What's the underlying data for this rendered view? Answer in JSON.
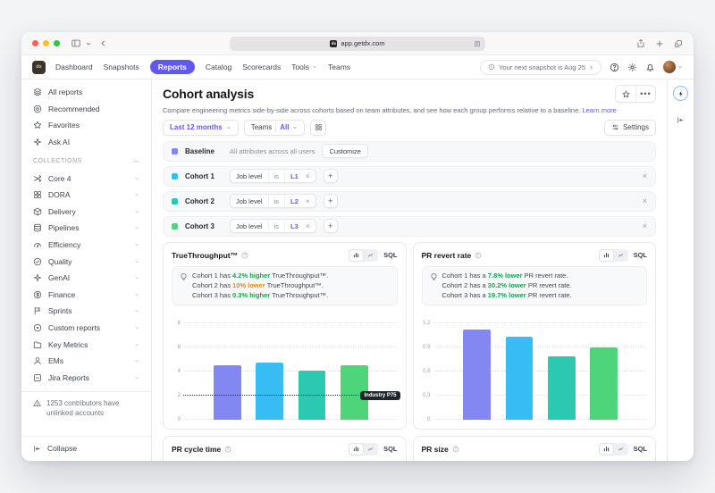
{
  "browser": {
    "url": "app.getdx.com",
    "favicon_text": "dx",
    "chrome_icons": [
      "sidebar-toggle-icon",
      "back-icon",
      "reader-icon",
      "share-icon",
      "new-tab-icon",
      "tabs-icon"
    ]
  },
  "nav": {
    "logo_text": "dx",
    "items": [
      {
        "label": "Dashboard",
        "active": false,
        "dropdown": false
      },
      {
        "label": "Snapshots",
        "active": false,
        "dropdown": false
      },
      {
        "label": "Reports",
        "active": true,
        "dropdown": false
      },
      {
        "label": "Catalog",
        "active": false,
        "dropdown": false
      },
      {
        "label": "Scorecards",
        "active": false,
        "dropdown": false
      },
      {
        "label": "Tools",
        "active": false,
        "dropdown": true
      },
      {
        "label": "Teams",
        "active": false,
        "dropdown": false
      }
    ],
    "snapshot_pill": "Your next snapshot is Aug 25",
    "right_icons": [
      "clock-icon",
      "help-icon",
      "gear-icon",
      "bell-icon",
      "avatar"
    ]
  },
  "sidebar": {
    "top_items": [
      {
        "label": "All reports",
        "icon": "layers"
      },
      {
        "label": "Recommended",
        "icon": "badge"
      },
      {
        "label": "Favorites",
        "icon": "star"
      },
      {
        "label": "Ask AI",
        "icon": "sparkle"
      }
    ],
    "collections_label": "COLLECTIONS",
    "collections": [
      {
        "label": "Core 4",
        "icon": "shuffle"
      },
      {
        "label": "DORA",
        "icon": "grid"
      },
      {
        "label": "Delivery",
        "icon": "package"
      },
      {
        "label": "Pipelines",
        "icon": "database"
      },
      {
        "label": "Efficiency",
        "icon": "gauge"
      },
      {
        "label": "Quality",
        "icon": "check-circle"
      },
      {
        "label": "GenAI",
        "icon": "sparkle"
      },
      {
        "label": "Finance",
        "icon": "dollar"
      },
      {
        "label": "Sprints",
        "icon": "flag"
      },
      {
        "label": "Custom reports",
        "icon": "target"
      },
      {
        "label": "Key Metrics",
        "icon": "folder"
      },
      {
        "label": "EMs",
        "icon": "user"
      },
      {
        "label": "Jira Reports",
        "icon": "square-minus"
      }
    ],
    "warning_text": "1253 contributors have unlinked accounts",
    "collapse_label": "Collapse"
  },
  "page": {
    "title": "Cohort analysis",
    "description": "Compare engineering metrics side-by-side across cohorts based on team attributes, and see how each group performs relative to a baseline.",
    "learn_more": "Learn more",
    "filters": {
      "date_range": "Last 12 months",
      "teams_label": "Teams",
      "teams_value": "All"
    },
    "settings_label": "Settings",
    "baseline": {
      "name": "Baseline",
      "swatch": "#8287f2",
      "description": "All attributes across all users",
      "customize_label": "Customize"
    },
    "cohorts": [
      {
        "name": "Cohort 1",
        "swatch": "#38bdf2",
        "filter": {
          "field": "Job level",
          "op": "is",
          "value": "L1"
        }
      },
      {
        "name": "Cohort 2",
        "swatch": "#2bc8b2",
        "filter": {
          "field": "Job level",
          "op": "is",
          "value": "L2"
        }
      },
      {
        "name": "Cohort 3",
        "swatch": "#4ed579",
        "filter": {
          "field": "Job level",
          "op": "is",
          "value": "L3"
        }
      }
    ]
  },
  "panels": [
    {
      "title": "TrueThroughput™",
      "sql_label": "SQL",
      "insights": [
        {
          "prefix": "Cohort 1 has ",
          "highlight": "4.2% higher",
          "highlight_color": "#16a34a",
          "suffix": " TrueThroughput™."
        },
        {
          "prefix": "Cohort 2 has ",
          "highlight": "10% lower",
          "highlight_color": "#e08b12",
          "suffix": " TrueThroughput™."
        },
        {
          "prefix": "Cohort 3 has ",
          "highlight": "0.3% higher",
          "highlight_color": "#16a34a",
          "suffix": " TrueThroughput™."
        }
      ]
    },
    {
      "title": "PR revert rate",
      "sql_label": "SQL",
      "insights": [
        {
          "prefix": "Cohort 1 has a ",
          "highlight": "7.8% lower",
          "highlight_color": "#16a34a",
          "suffix": " PR revert rate."
        },
        {
          "prefix": "Cohort 2 has a ",
          "highlight": "30.2% lower",
          "highlight_color": "#16a34a",
          "suffix": " PR revert rate."
        },
        {
          "prefix": "Cohort 3 has a ",
          "highlight": "19.7% lower",
          "highlight_color": "#16a34a",
          "suffix": " PR revert rate."
        }
      ]
    },
    {
      "title": "PR cycle time",
      "sql_label": "SQL"
    },
    {
      "title": "PR size",
      "sql_label": "SQL"
    }
  ],
  "chart_data": [
    {
      "type": "bar",
      "title": "TrueThroughput™",
      "categories": [
        "Baseline",
        "Cohort 1",
        "Cohort 2",
        "Cohort 3"
      ],
      "values": [
        4.55,
        4.75,
        4.1,
        4.55
      ],
      "colors": [
        "#8287f2",
        "#38bdf2",
        "#2bc8b2",
        "#4ed579"
      ],
      "yticks": [
        0,
        2,
        4,
        6,
        8
      ],
      "ylim": [
        0,
        8.8
      ],
      "grid": "dotted",
      "ref_line": {
        "value": 2,
        "label": "Industry P75"
      }
    },
    {
      "type": "bar",
      "title": "PR revert rate",
      "categories": [
        "Baseline",
        "Cohort 1",
        "Cohort 2",
        "Cohort 3"
      ],
      "values": [
        1.13,
        1.04,
        0.79,
        0.9
      ],
      "colors": [
        "#8287f2",
        "#38bdf2",
        "#2bc8b2",
        "#4ed579"
      ],
      "yticks": [
        0,
        0.3,
        0.6,
        0.9,
        1.2
      ],
      "ylim": [
        0,
        1.32
      ],
      "grid": "dotted"
    }
  ],
  "colors": {
    "accent": "#6159ee",
    "positive": "#16a34a",
    "negative": "#e08b12",
    "traffic": [
      "#ff5f57",
      "#febc2e",
      "#28c840"
    ]
  }
}
